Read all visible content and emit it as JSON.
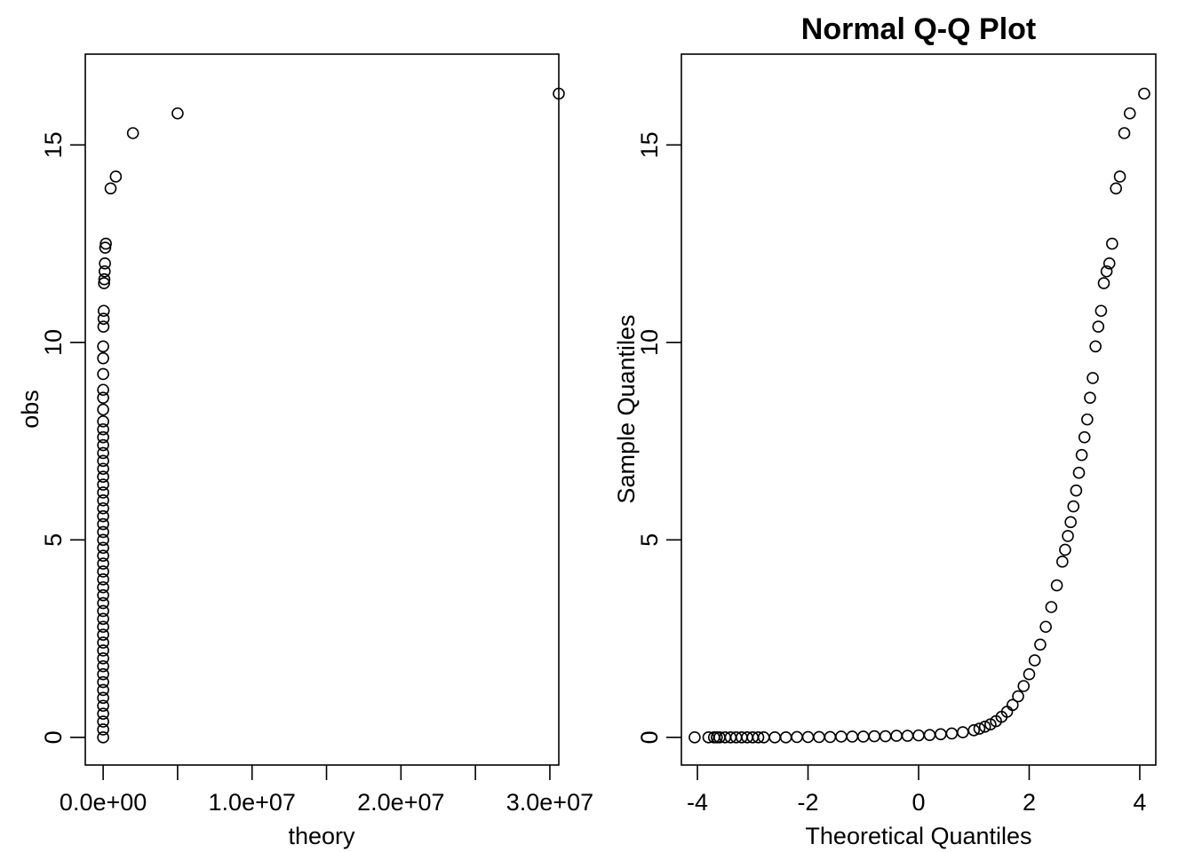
{
  "chart_data": [
    {
      "type": "scatter",
      "title": "",
      "xlabel": "theory",
      "ylabel": "obs",
      "xlim": [
        -1200000,
        30600000
      ],
      "ylim": [
        -0.7,
        17.3
      ],
      "xticks": [
        0,
        5000000,
        10000000,
        15000000,
        20000000,
        25000000,
        30000000
      ],
      "xtick_labels": [
        "0.0e+00",
        "",
        "1.0e+07",
        "",
        "2.0e+07",
        "",
        "3.0e+07"
      ],
      "yticks": [
        0,
        5,
        10,
        15
      ],
      "ytick_labels": [
        "0",
        "5",
        "10",
        "15"
      ],
      "grid": false,
      "legend": "none",
      "marker": "open-circle",
      "series": [
        {
          "name": "",
          "points": [
            [
              0,
              0
            ],
            [
              0,
              0.2
            ],
            [
              0,
              0.4
            ],
            [
              0,
              0.6
            ],
            [
              0,
              0.8
            ],
            [
              0,
              1.0
            ],
            [
              0,
              1.2
            ],
            [
              0,
              1.4
            ],
            [
              0,
              1.6
            ],
            [
              0,
              1.8
            ],
            [
              0,
              2.0
            ],
            [
              0,
              2.2
            ],
            [
              0,
              2.4
            ],
            [
              0,
              2.6
            ],
            [
              0,
              2.8
            ],
            [
              0,
              3.0
            ],
            [
              0,
              3.2
            ],
            [
              0,
              3.4
            ],
            [
              0,
              3.6
            ],
            [
              0,
              3.8
            ],
            [
              0,
              4.0
            ],
            [
              0,
              4.2
            ],
            [
              0,
              4.4
            ],
            [
              0,
              4.6
            ],
            [
              0,
              4.8
            ],
            [
              0,
              5.0
            ],
            [
              0,
              5.2
            ],
            [
              0,
              5.4
            ],
            [
              0,
              5.6
            ],
            [
              0,
              5.8
            ],
            [
              0,
              6.0
            ],
            [
              0,
              6.2
            ],
            [
              0,
              6.4
            ],
            [
              0,
              6.6
            ],
            [
              0,
              6.8
            ],
            [
              0,
              7.0
            ],
            [
              0,
              7.2
            ],
            [
              0,
              7.4
            ],
            [
              0,
              7.6
            ],
            [
              0,
              7.8
            ],
            [
              0,
              8.0
            ],
            [
              0,
              8.3
            ],
            [
              0,
              8.6
            ],
            [
              0,
              8.8
            ],
            [
              0,
              9.2
            ],
            [
              0,
              9.6
            ],
            [
              0,
              9.9
            ],
            [
              20000,
              10.4
            ],
            [
              30000,
              10.6
            ],
            [
              40000,
              10.8
            ],
            [
              60000,
              11.5
            ],
            [
              80000,
              11.6
            ],
            [
              100000,
              11.8
            ],
            [
              120000,
              12.0
            ],
            [
              140000,
              12.4
            ],
            [
              180000,
              12.5
            ],
            [
              500000,
              13.9
            ],
            [
              850000,
              14.2
            ],
            [
              2000000,
              15.3
            ],
            [
              5000000,
              15.8
            ],
            [
              30600000,
              16.3
            ]
          ]
        }
      ]
    },
    {
      "type": "scatter",
      "title": "Normal Q-Q Plot",
      "xlabel": "Theoretical Quantiles",
      "ylabel": "Sample Quantiles",
      "xlim": [
        -4.29,
        4.29
      ],
      "ylim": [
        -0.7,
        17.3
      ],
      "xticks": [
        -4,
        -2,
        0,
        2,
        4
      ],
      "xtick_labels": [
        "-4",
        "-2",
        "0",
        "2",
        "4"
      ],
      "yticks": [
        0,
        5,
        10,
        15
      ],
      "ytick_labels": [
        "0",
        "5",
        "10",
        "15"
      ],
      "grid": false,
      "legend": "none",
      "marker": "open-circle",
      "series": [
        {
          "name": "",
          "points": [
            [
              -4.05,
              0
            ],
            [
              -3.8,
              0
            ],
            [
              -3.7,
              0
            ],
            [
              -3.65,
              0
            ],
            [
              -3.6,
              0
            ],
            [
              -3.5,
              0
            ],
            [
              -3.4,
              0
            ],
            [
              -3.3,
              0
            ],
            [
              -3.2,
              0
            ],
            [
              -3.1,
              0
            ],
            [
              -3.0,
              0
            ],
            [
              -2.9,
              0
            ],
            [
              -2.8,
              0
            ],
            [
              -2.6,
              0
            ],
            [
              -2.4,
              0
            ],
            [
              -2.2,
              0.01
            ],
            [
              -2.0,
              0.01
            ],
            [
              -1.8,
              0.01
            ],
            [
              -1.6,
              0.01
            ],
            [
              -1.4,
              0.02
            ],
            [
              -1.2,
              0.02
            ],
            [
              -1.0,
              0.02
            ],
            [
              -0.8,
              0.03
            ],
            [
              -0.6,
              0.03
            ],
            [
              -0.4,
              0.04
            ],
            [
              -0.2,
              0.04
            ],
            [
              0,
              0.05
            ],
            [
              0.2,
              0.06
            ],
            [
              0.4,
              0.08
            ],
            [
              0.6,
              0.1
            ],
            [
              0.8,
              0.13
            ],
            [
              1.0,
              0.18
            ],
            [
              1.1,
              0.22
            ],
            [
              1.2,
              0.27
            ],
            [
              1.3,
              0.33
            ],
            [
              1.4,
              0.41
            ],
            [
              1.5,
              0.52
            ],
            [
              1.6,
              0.65
            ],
            [
              1.7,
              0.82
            ],
            [
              1.8,
              1.04
            ],
            [
              1.9,
              1.3
            ],
            [
              2.0,
              1.6
            ],
            [
              2.1,
              1.95
            ],
            [
              2.2,
              2.35
            ],
            [
              2.3,
              2.8
            ],
            [
              2.4,
              3.3
            ],
            [
              2.5,
              3.85
            ],
            [
              2.6,
              4.45
            ],
            [
              2.65,
              4.75
            ],
            [
              2.7,
              5.1
            ],
            [
              2.75,
              5.45
            ],
            [
              2.8,
              5.85
            ],
            [
              2.85,
              6.25
            ],
            [
              2.9,
              6.7
            ],
            [
              2.95,
              7.15
            ],
            [
              3.0,
              7.6
            ],
            [
              3.05,
              8.05
            ],
            [
              3.1,
              8.6
            ],
            [
              3.15,
              9.1
            ],
            [
              3.2,
              9.9
            ],
            [
              3.25,
              10.4
            ],
            [
              3.3,
              10.8
            ],
            [
              3.35,
              11.5
            ],
            [
              3.4,
              11.8
            ],
            [
              3.45,
              12.0
            ],
            [
              3.5,
              12.5
            ],
            [
              3.57,
              13.9
            ],
            [
              3.64,
              14.2
            ],
            [
              3.72,
              15.3
            ],
            [
              3.82,
              15.8
            ],
            [
              4.08,
              16.3
            ]
          ]
        }
      ]
    }
  ]
}
